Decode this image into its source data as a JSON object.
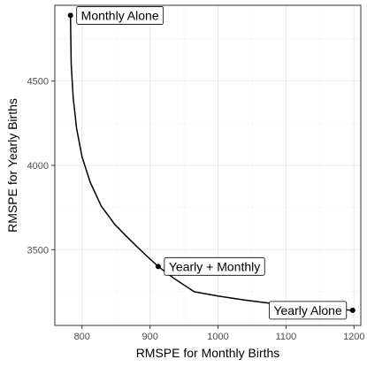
{
  "chart_data": {
    "type": "line",
    "title": "",
    "xlabel": "RMSPE for Monthly Births",
    "ylabel": "RMSPE for Yearly Births",
    "xlim": [
      760,
      1210
    ],
    "ylim": [
      3050,
      4950
    ],
    "x_ticks": [
      800,
      900,
      1000,
      1100,
      1200
    ],
    "y_ticks": [
      3500,
      4000,
      4500
    ],
    "grid": true,
    "curve": {
      "x": [
        783,
        784,
        787,
        792,
        800,
        812,
        828,
        848,
        870,
        893,
        912,
        935,
        965,
        1000,
        1040,
        1080,
        1120,
        1160,
        1198
      ],
      "y": [
        4890,
        4600,
        4400,
        4220,
        4050,
        3900,
        3760,
        3650,
        3560,
        3470,
        3400,
        3330,
        3250,
        3225,
        3200,
        3180,
        3165,
        3150,
        3140
      ]
    },
    "points": [
      {
        "label": "Monthly Alone",
        "x": 783,
        "y": 4890,
        "anchor": "right"
      },
      {
        "label": "Yearly + Monthly",
        "x": 912,
        "y": 3400,
        "anchor": "right"
      },
      {
        "label": "Yearly Alone",
        "x": 1198,
        "y": 3140,
        "anchor": "left"
      }
    ]
  }
}
